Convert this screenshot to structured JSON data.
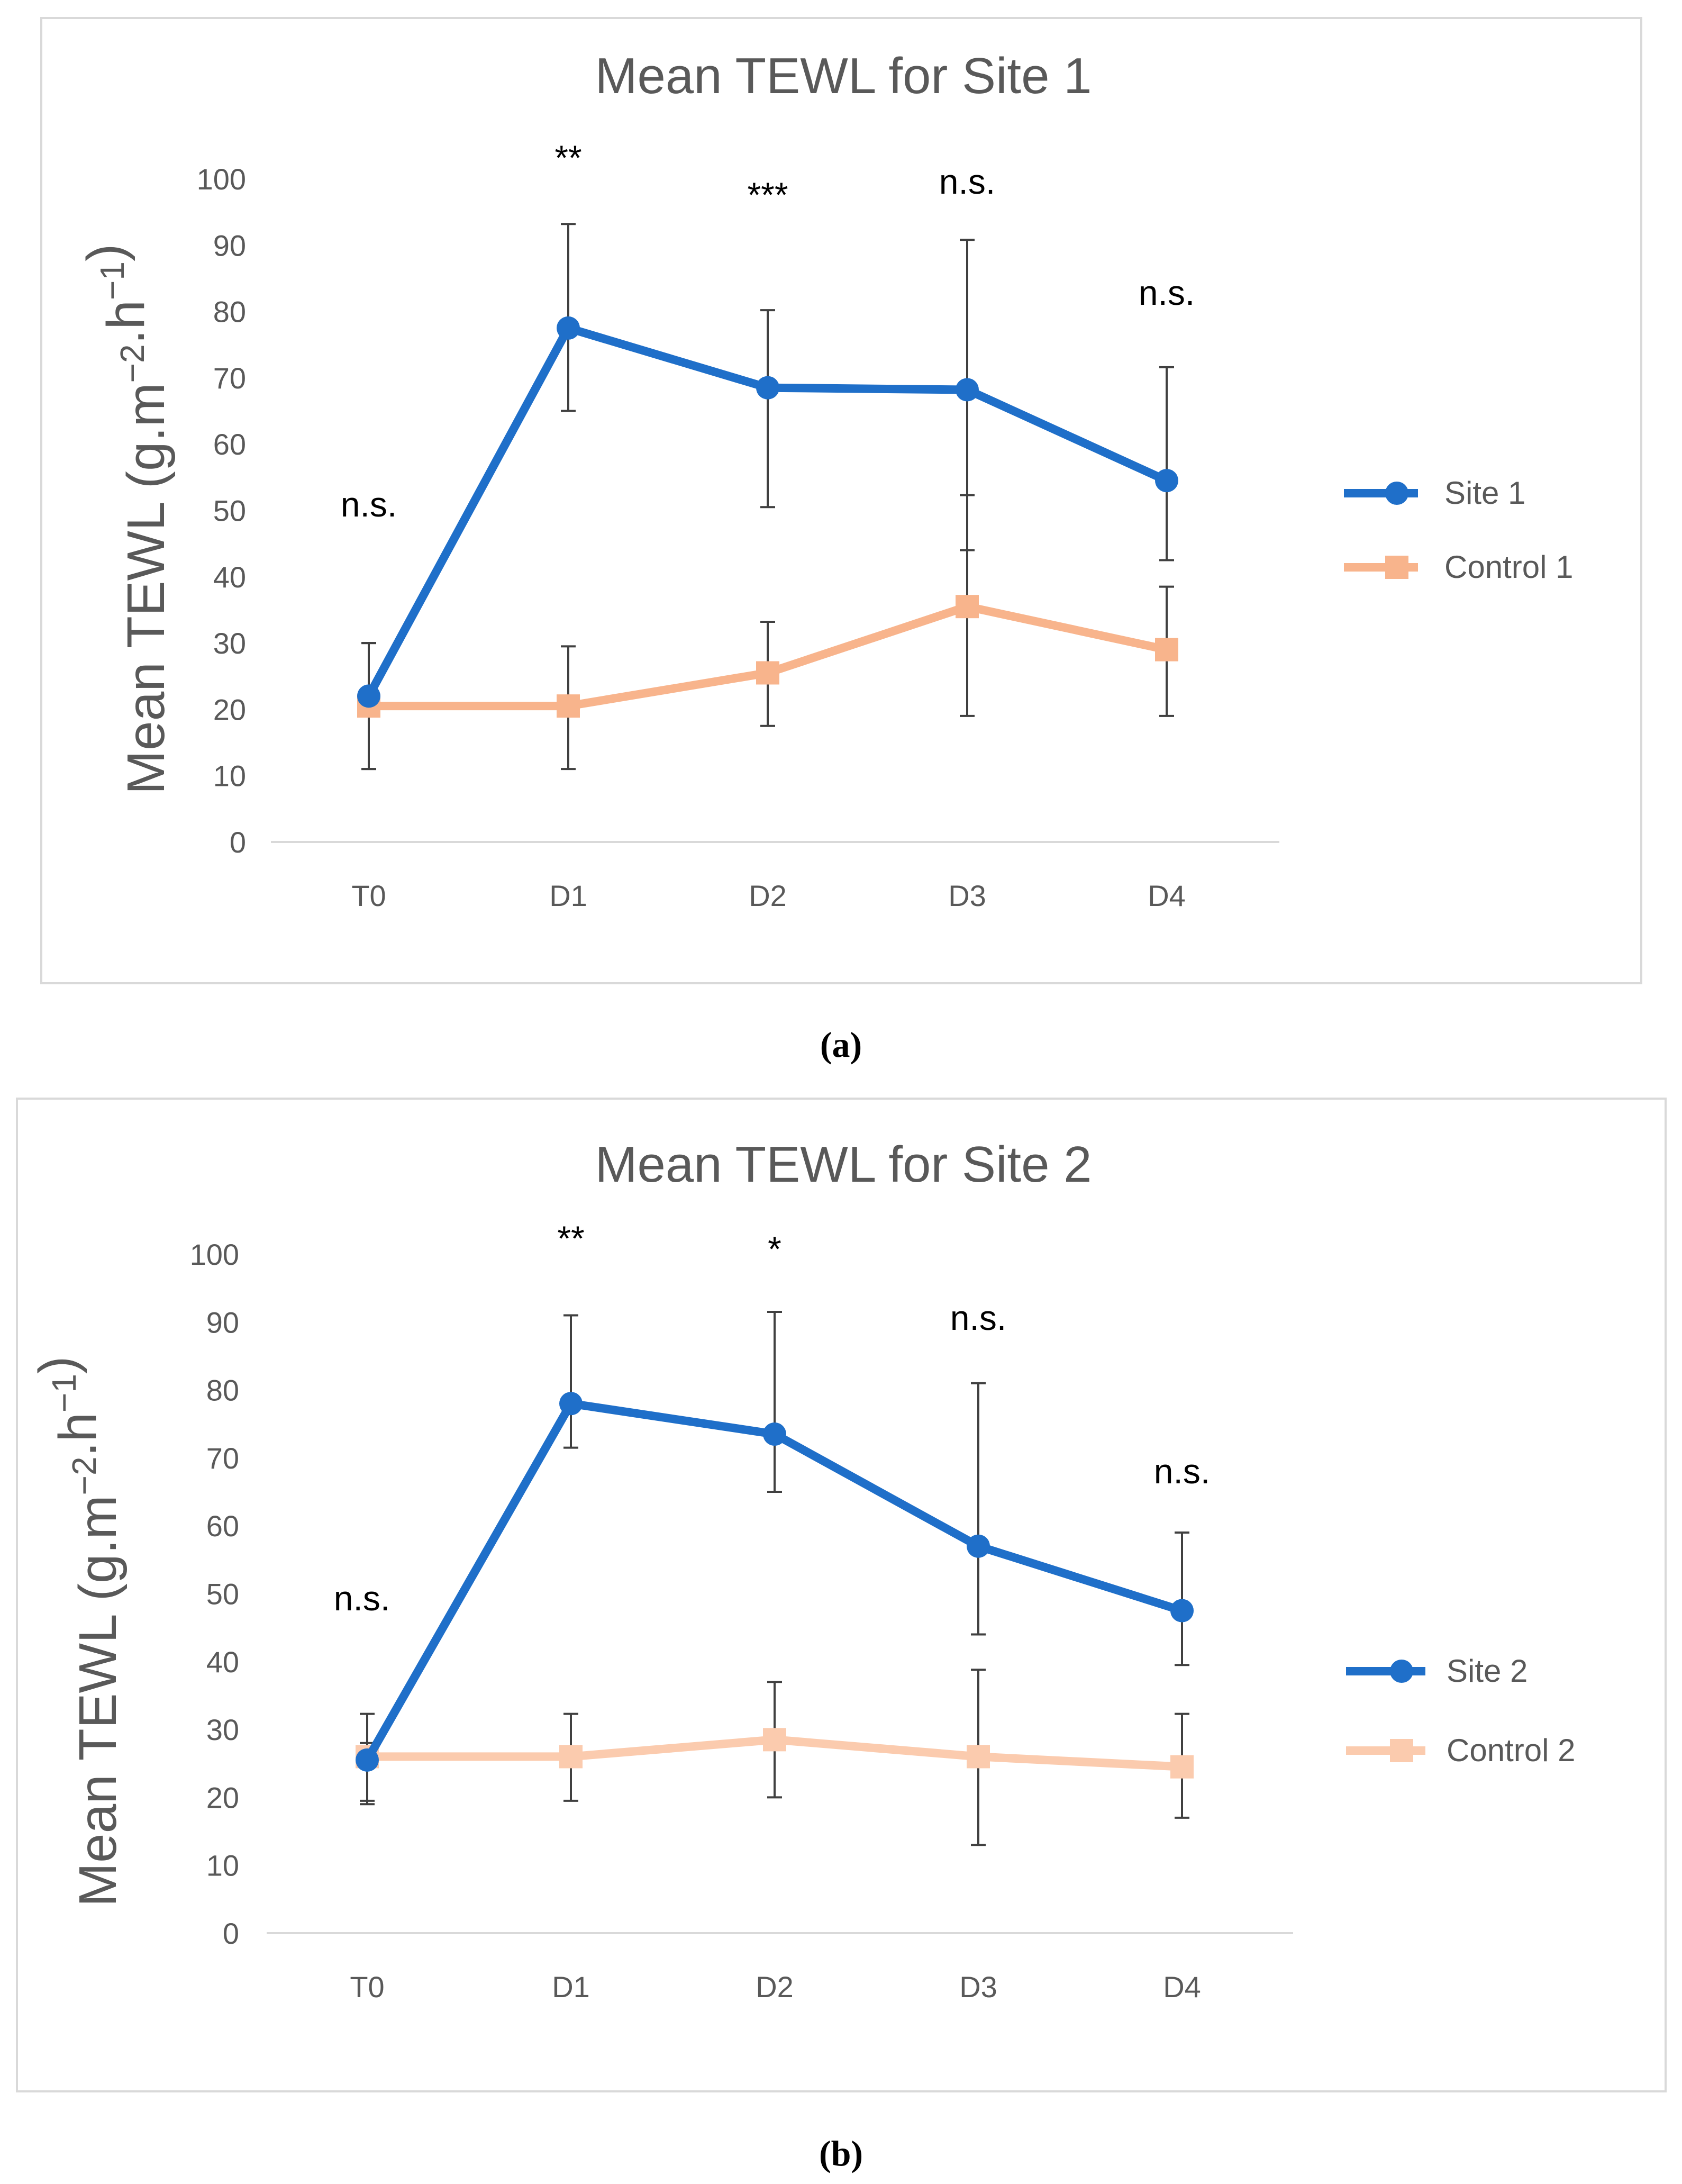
{
  "chart_data": [
    {
      "type": "line",
      "title": "Mean TEWL for Site 1",
      "xlabel": "",
      "ylabel": "Mean TEWL (g.m−2.h−1)",
      "ylim": [
        0,
        100
      ],
      "yticks": [
        0,
        10,
        20,
        30,
        40,
        50,
        60,
        70,
        80,
        90,
        100
      ],
      "categories": [
        "T0",
        "D1",
        "D2",
        "D3",
        "D4"
      ],
      "grid": false,
      "legend": "right",
      "series": [
        {
          "name": "Site 1",
          "color": "#1f6fc9",
          "marker": "circle",
          "values": [
            22,
            77.5,
            68.5,
            68.2,
            54.5
          ],
          "err_low": [
            11,
            65,
            50.5,
            44,
            42.5
          ],
          "err_high": [
            30,
            93.2,
            80.2,
            90.8,
            71.6
          ]
        },
        {
          "name": "Control 1",
          "color": "#f8b48c",
          "marker": "square",
          "values": [
            20.5,
            20.5,
            25.5,
            35.5,
            29
          ],
          "err_low": [
            11,
            11,
            17.5,
            19,
            19
          ],
          "err_high": [
            30,
            29.5,
            33.2,
            52.3,
            38.5
          ]
        }
      ],
      "annotations": [
        "n.s.",
        "**",
        "***",
        "n.s.",
        "n.s."
      ],
      "caption": "(a)"
    },
    {
      "type": "line",
      "title": "Mean TEWL for Site 2",
      "xlabel": "",
      "ylabel": "Mean TEWL (g.m−2.h−1)",
      "ylim": [
        0,
        100
      ],
      "yticks": [
        0,
        10,
        20,
        30,
        40,
        50,
        60,
        70,
        80,
        90,
        100
      ],
      "categories": [
        "T0",
        "D1",
        "D2",
        "D3",
        "D4"
      ],
      "grid": false,
      "legend": "right",
      "series": [
        {
          "name": "Site 2",
          "color": "#1f6fc9",
          "marker": "circle",
          "values": [
            25.5,
            78,
            73.5,
            57,
            47.5
          ],
          "err_low": [
            19,
            71.5,
            65,
            44,
            39.5
          ],
          "err_high": [
            28,
            91,
            91.5,
            81,
            59
          ]
        },
        {
          "name": "Control 2",
          "color": "#fbcbae",
          "marker": "square",
          "values": [
            26,
            26,
            28.5,
            26,
            24.5
          ],
          "err_low": [
            19.5,
            19.5,
            20,
            13,
            17
          ],
          "err_high": [
            32.3,
            32.3,
            37,
            38.8,
            32.3
          ]
        }
      ],
      "annotations": [
        "n.s.",
        "**",
        "*",
        "n.s.",
        "n.s."
      ],
      "caption": "(b)"
    }
  ]
}
